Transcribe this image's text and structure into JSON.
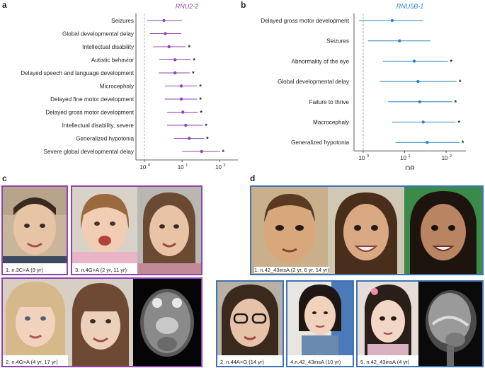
{
  "panels": {
    "a": "a",
    "b": "b",
    "c": "c",
    "d": "d"
  },
  "colors": {
    "purple": "#8e44ad",
    "blue": "#2e86c1"
  },
  "chart_data": [
    {
      "type": "scatter",
      "title": "RNU2-2",
      "xlabel": "OR",
      "xscale": "log",
      "xlim": [
        0.6,
        300
      ],
      "xticks": [
        {
          "label": "10",
          "sup": "0",
          "value": 1
        },
        {
          "label": "10",
          "sup": "1",
          "value": 10
        },
        {
          "label": "10",
          "sup": "2",
          "value": 100
        }
      ],
      "rows": [
        {
          "label": "Seizures",
          "or": 3.3,
          "lo": 1.2,
          "hi": 10,
          "sig": false
        },
        {
          "label": "Global developmental delay",
          "or": 3.6,
          "lo": 1.4,
          "hi": 9.5,
          "sig": false
        },
        {
          "label": "Intellectual disability",
          "or": 4.5,
          "lo": 1.7,
          "hi": 12.5,
          "sig": true
        },
        {
          "label": "Autistic behavior",
          "or": 6.5,
          "lo": 2.5,
          "hi": 17,
          "sig": true
        },
        {
          "label": "Delayed speech and language development",
          "or": 6.5,
          "lo": 2.4,
          "hi": 16,
          "sig": true
        },
        {
          "label": "Microcephaly",
          "or": 9.5,
          "lo": 3.5,
          "hi": 25,
          "sig": true
        },
        {
          "label": "Delayed fine motor development",
          "or": 9.5,
          "lo": 3.5,
          "hi": 25,
          "sig": true
        },
        {
          "label": "Delayed gross motor development",
          "or": 10.5,
          "lo": 4,
          "hi": 26,
          "sig": true
        },
        {
          "label": "Intellectual disability, severe",
          "or": 12.5,
          "lo": 4,
          "hi": 35,
          "sig": true
        },
        {
          "label": "Generalized hypotonia",
          "or": 15.5,
          "lo": 6,
          "hi": 38,
          "sig": true
        },
        {
          "label": "Severe global developmental delay",
          "or": 33,
          "lo": 10,
          "hi": 100,
          "sig": true
        }
      ]
    },
    {
      "type": "scatter",
      "title": "RNU5B-1",
      "xlabel": "OR",
      "xscale": "log",
      "xlim": [
        0.6,
        300
      ],
      "xticks": [
        {
          "label": "10",
          "sup": "0",
          "value": 1
        },
        {
          "label": "10",
          "sup": "1",
          "value": 10
        },
        {
          "label": "10",
          "sup": "2",
          "value": 100
        }
      ],
      "rows": [
        {
          "label": "Delayed gross motor development",
          "or": 5,
          "lo": 0.8,
          "hi": 28,
          "sig": false
        },
        {
          "label": "Seizures",
          "or": 7.5,
          "lo": 1.3,
          "hi": 42,
          "sig": false
        },
        {
          "label": "Abnormality of the eye",
          "or": 17,
          "lo": 3,
          "hi": 110,
          "sig": true
        },
        {
          "label": "Global developmental delay",
          "or": 21,
          "lo": 2.5,
          "hi": 180,
          "sig": true
        },
        {
          "label": "Failure to thrive",
          "or": 23,
          "lo": 4,
          "hi": 140,
          "sig": true
        },
        {
          "label": "Macrocephaly",
          "or": 28,
          "lo": 5,
          "hi": 170,
          "sig": true
        },
        {
          "label": "Generalized hypotonia",
          "or": 35,
          "lo": 6,
          "hi": 210,
          "sig": true
        }
      ]
    }
  ],
  "star": "*",
  "photos_c": [
    {
      "caption": "1. n.3C>A (9 yr)"
    },
    {
      "caption": "3. n.4G>A (2 yr, 11 yr)"
    },
    {
      "caption": "2. n.4G>A (4 yr, 17 yr)"
    }
  ],
  "photos_d": [
    {
      "caption": "1. n.42_43insA (2 yr, 6 yr, 14 yr)"
    },
    {
      "caption": "2. n.44A>G (14 yr)"
    },
    {
      "caption": "4.n.42_43insA (10 yr)"
    },
    {
      "caption": "5. n.42_43insA (4 yr)"
    }
  ]
}
